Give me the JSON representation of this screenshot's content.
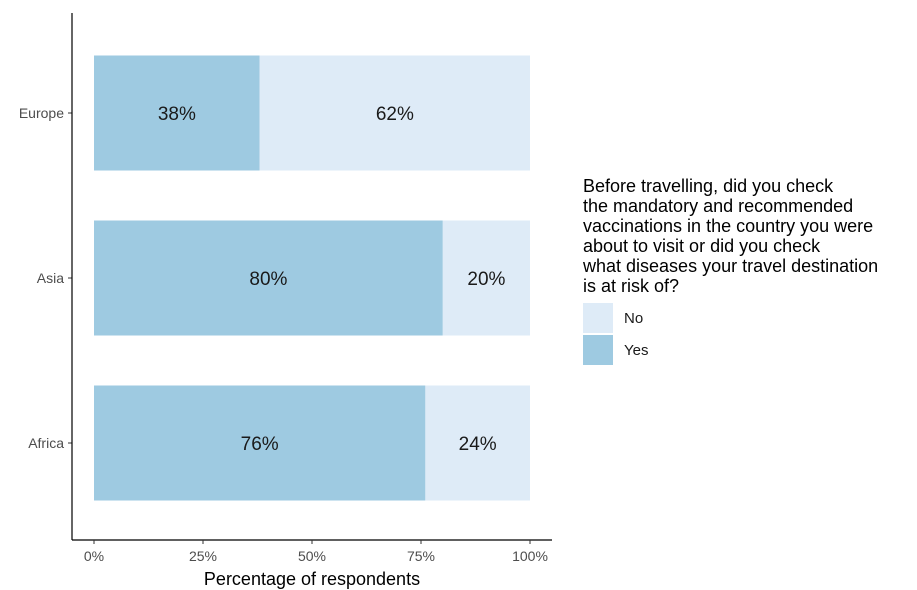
{
  "chart_data": {
    "type": "bar",
    "orientation": "horizontal",
    "stacked": true,
    "categories": [
      "Europe",
      "Asia",
      "Africa"
    ],
    "series": [
      {
        "name": "Yes",
        "values": [
          38,
          80,
          76
        ],
        "color": "#9ecae1"
      },
      {
        "name": "No",
        "values": [
          62,
          20,
          24
        ],
        "color": "#deebf7"
      }
    ],
    "data_labels": {
      "Yes": [
        "38%",
        "80%",
        "76%"
      ],
      "No": [
        "62%",
        "20%",
        "24%"
      ]
    },
    "xlabel": "Percentage of respondents",
    "ylabel": "",
    "xlim": [
      0,
      100
    ],
    "x_ticks": [
      "0%",
      "25%",
      "50%",
      "75%",
      "100%"
    ],
    "x_tick_values": [
      0,
      25,
      50,
      75,
      100
    ],
    "grid": false,
    "legend": {
      "placement": "right",
      "title_lines": [
        "Before travelling, did you check",
        "the mandatory and recommended",
        "vaccinations in the country you were",
        "about to visit or did you check",
        "what diseases your travel destination",
        "is at risk of?"
      ],
      "entries": [
        {
          "label": "No",
          "color": "#deebf7"
        },
        {
          "label": "Yes",
          "color": "#9ecae1"
        }
      ]
    }
  }
}
